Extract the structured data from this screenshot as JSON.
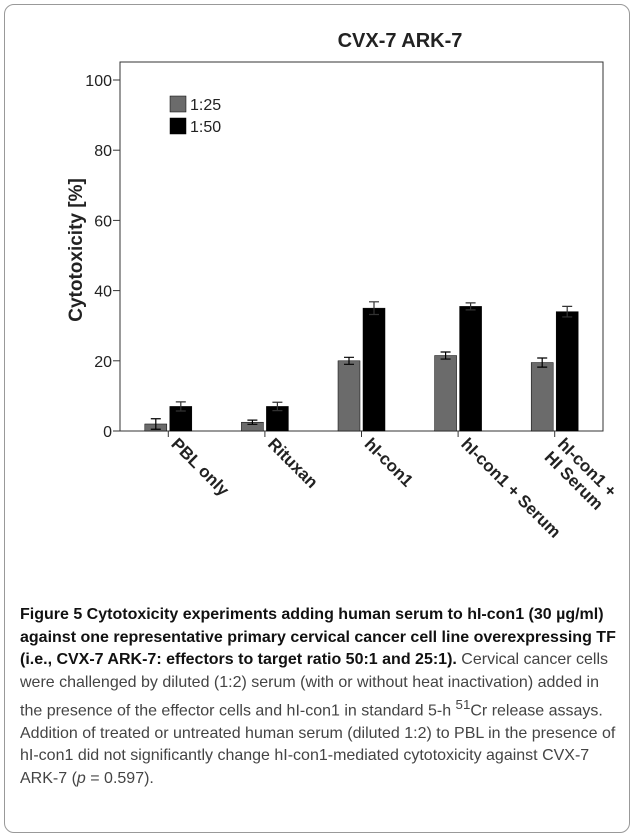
{
  "chart_data": {
    "type": "bar",
    "title": "CVX-7 ARK-7",
    "y_label": "Cytotoxicity [%]",
    "categories": [
      "PBL only",
      "Rituxan",
      "hI-con1",
      "hI-con1 + Serum",
      "hI-con1 +\nHI Serum"
    ],
    "series": [
      {
        "name": "1:25",
        "color": "#6b6b6b",
        "values": [
          2,
          2.5,
          20,
          21.5,
          19.5
        ],
        "errors": [
          1.5,
          0.6,
          1,
          1,
          1.3
        ]
      },
      {
        "name": "1:50",
        "color": "#000000",
        "values": [
          7,
          7,
          35,
          35.5,
          34
        ],
        "errors": [
          1.3,
          1.2,
          1.8,
          1,
          1.5
        ]
      }
    ],
    "ylim": [
      0,
      100
    ],
    "yticks": [
      0,
      20,
      40,
      60,
      80,
      100
    ],
    "legend": "upper left"
  },
  "caption": {
    "title": "Figure 5 Cytotoxicity experiments adding human serum to hI-con1 (30 µg/ml) against one representative primary cervical cancer cell line overexpressing TF (i.e., CVX-7 ARK-7: effectors to target ratio 50:1 and 25:1).",
    "body": [
      "Cervical cancer cells were challenged by diluted (1:2) serum (with or without heat inactivation) added in the presence of the effector cells and hI-con1 in standard 5-h ",
      "51",
      "Cr release assays. Addition of treated or untreated human serum (diluted 1:2) to PBL in the presence of hI-con1 did not significantly change hI-con1-mediated cytotoxicity against CVX-7 ARK-7 (",
      "p",
      " = 0.597)."
    ]
  }
}
